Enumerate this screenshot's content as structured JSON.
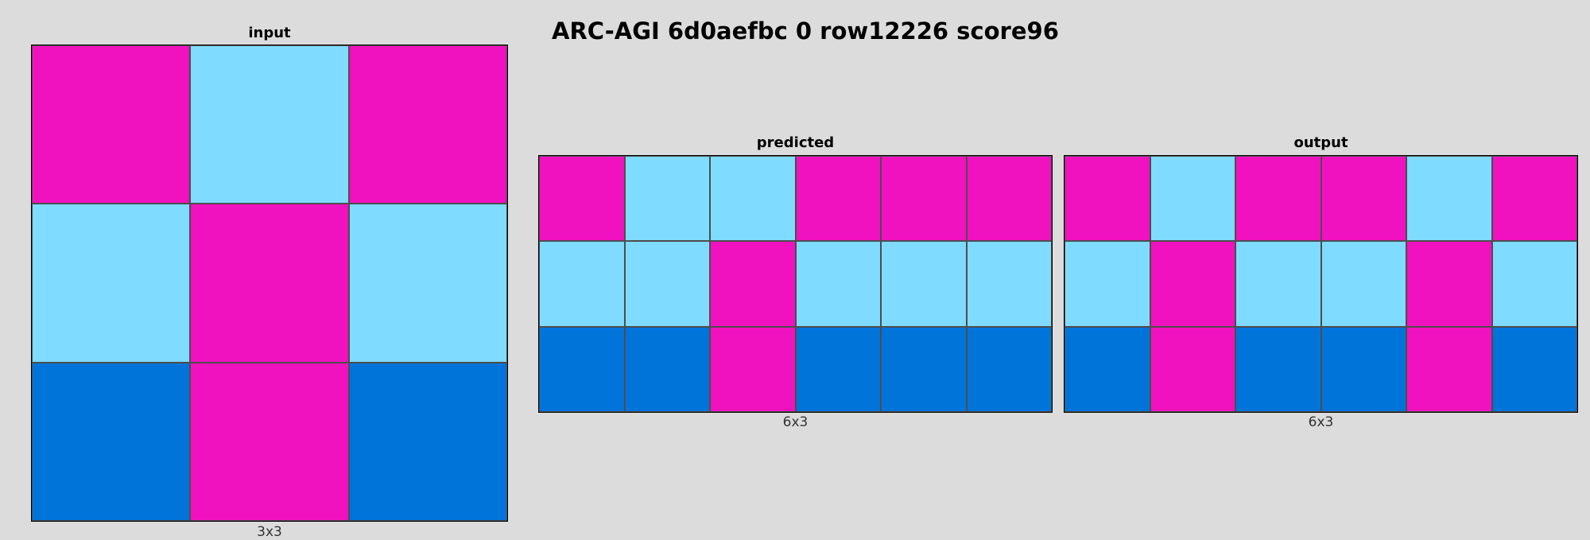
{
  "title": "ARC-AGI 6d0aefbc 0 row12226 score96",
  "palette": {
    "0": "#000000",
    "1": "#0074D9",
    "2": "#FF4136",
    "3": "#2ECC40",
    "4": "#FFDC00",
    "5": "#AAAAAA",
    "6": "#F012BE",
    "7": "#FF851B",
    "8": "#7FDBFF",
    "9": "#870C25"
  },
  "panels": {
    "input": {
      "label": "input",
      "dims": "3x3",
      "grid": [
        [
          6,
          8,
          6
        ],
        [
          8,
          6,
          8
        ],
        [
          1,
          6,
          1
        ]
      ]
    },
    "predicted": {
      "label": "predicted",
      "dims": "6x3",
      "grid": [
        [
          6,
          8,
          8,
          6,
          6,
          6
        ],
        [
          8,
          8,
          6,
          8,
          8,
          8
        ],
        [
          1,
          1,
          6,
          1,
          1,
          1
        ]
      ]
    },
    "output": {
      "label": "output",
      "dims": "6x3",
      "grid": [
        [
          6,
          8,
          6,
          6,
          8,
          6
        ],
        [
          8,
          6,
          8,
          8,
          6,
          8
        ],
        [
          1,
          6,
          1,
          1,
          6,
          1
        ]
      ]
    }
  }
}
